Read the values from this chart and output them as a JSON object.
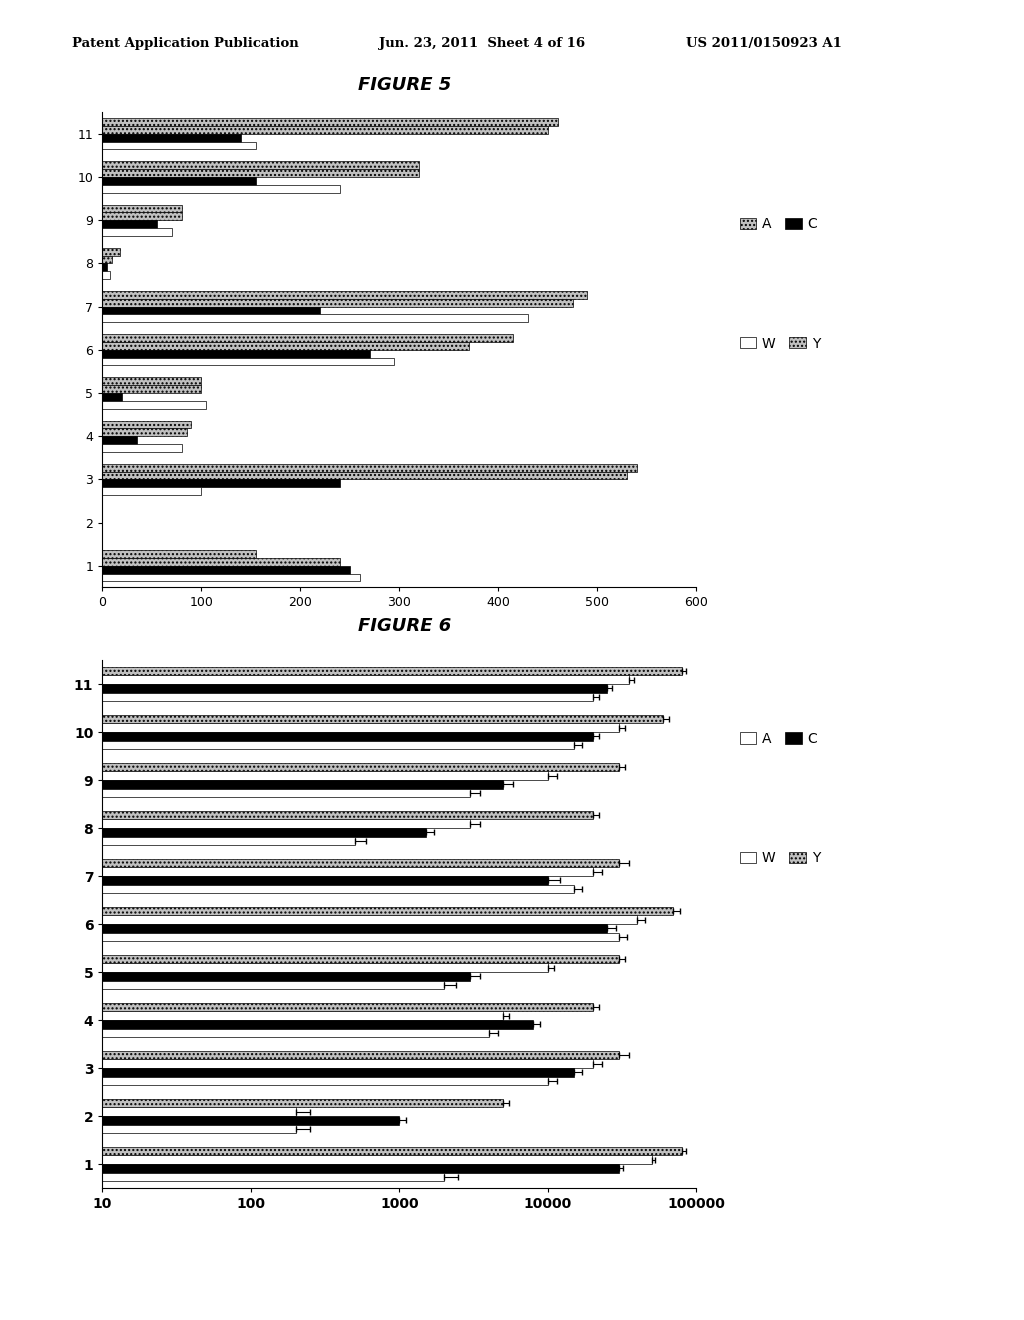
{
  "fig5_title": "FIGURE 5",
  "fig6_title": "FIGURE 6",
  "header_left": "Patent Application Publication",
  "header_mid": "Jun. 23, 2011  Sheet 4 of 16",
  "header_right": "US 2011/0150923 A1",
  "fig5": {
    "categories": [
      1,
      2,
      3,
      4,
      5,
      6,
      7,
      8,
      9,
      10,
      11
    ],
    "Y": [
      155,
      0,
      540,
      90,
      100,
      415,
      490,
      18,
      80,
      320,
      460
    ],
    "A": [
      240,
      0,
      530,
      85,
      100,
      370,
      475,
      10,
      80,
      320,
      450
    ],
    "C": [
      250,
      0,
      240,
      35,
      20,
      270,
      220,
      5,
      55,
      155,
      140
    ],
    "W": [
      260,
      0,
      100,
      80,
      105,
      295,
      430,
      8,
      70,
      240,
      155
    ],
    "xlim": [
      0,
      600
    ],
    "xticks": [
      0,
      100,
      200,
      300,
      400,
      500,
      600
    ]
  },
  "fig6": {
    "categories": [
      1,
      2,
      3,
      4,
      5,
      6,
      7,
      8,
      9,
      10,
      11
    ],
    "Y": [
      80000,
      5000,
      30000,
      20000,
      30000,
      70000,
      30000,
      20000,
      30000,
      60000,
      80000
    ],
    "A": [
      50000,
      200,
      20000,
      5000,
      10000,
      40000,
      20000,
      3000,
      10000,
      30000,
      35000
    ],
    "C": [
      30000,
      1000,
      15000,
      8000,
      3000,
      25000,
      10000,
      1500,
      5000,
      20000,
      25000
    ],
    "W": [
      2000,
      200,
      10000,
      4000,
      2000,
      30000,
      15000,
      500,
      3000,
      15000,
      20000
    ],
    "Y_err": [
      5000,
      500,
      5000,
      2000,
      3000,
      8000,
      5000,
      2000,
      3000,
      5000,
      5000
    ],
    "A_err": [
      3000,
      50,
      3000,
      500,
      1000,
      5000,
      3000,
      500,
      1500,
      3000,
      3000
    ],
    "C_err": [
      2000,
      100,
      2000,
      800,
      500,
      4000,
      2000,
      200,
      800,
      2000,
      2000
    ],
    "W_err": [
      500,
      50,
      1500,
      600,
      400,
      4000,
      2000,
      100,
      500,
      2000,
      2000
    ],
    "xlim": [
      10,
      100000
    ],
    "xticks": [
      10,
      100,
      1000,
      10000,
      100000
    ]
  }
}
